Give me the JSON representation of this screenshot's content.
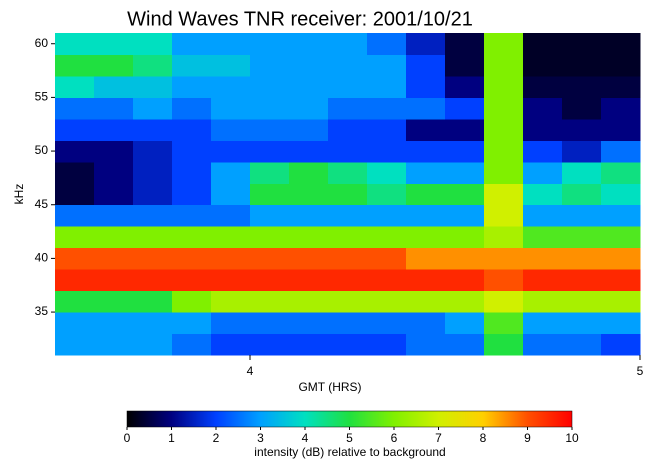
{
  "chart_data": {
    "type": "heatmap",
    "title": "Wind Waves TNR receiver: 2001/10/21",
    "x_label": "GMT (HRS)",
    "y_label": "kHz",
    "x": [
      3.55,
      3.65,
      3.75,
      3.85,
      3.95,
      4.05,
      4.15,
      4.25,
      4.35,
      4.45,
      4.55,
      4.65,
      4.75,
      4.85,
      4.95
    ],
    "y": [
      32,
      34,
      36,
      38,
      40,
      42,
      44,
      46,
      48,
      50,
      52,
      54,
      56,
      58,
      60
    ],
    "values": [
      [
        3,
        3,
        3,
        2.5,
        2,
        2,
        2,
        2,
        2,
        2.5,
        2.5,
        5,
        2.5,
        2.5,
        2
      ],
      [
        3,
        3,
        3,
        3,
        2.5,
        2.5,
        2.5,
        2.5,
        2.5,
        2.5,
        3,
        5.5,
        3,
        3,
        3
      ],
      [
        5,
        5,
        5,
        6,
        6.5,
        6.5,
        6.5,
        6.5,
        6.5,
        6.5,
        6.5,
        7,
        6.5,
        6.5,
        6.5
      ],
      [
        9.5,
        9.5,
        9.5,
        9.5,
        9.5,
        9.5,
        9.5,
        9.5,
        9.5,
        9.5,
        9.5,
        9,
        9.5,
        9.5,
        9.5
      ],
      [
        9,
        9,
        9,
        9,
        9,
        9,
        9,
        9,
        9,
        8.5,
        8.5,
        8.5,
        8.5,
        8.5,
        8.5
      ],
      [
        6,
        6,
        6,
        6,
        6,
        6,
        6,
        6,
        6,
        6,
        6,
        6.5,
        5.5,
        5.5,
        5.5
      ],
      [
        2.5,
        2.5,
        2.5,
        2.5,
        2.5,
        3,
        3,
        3,
        3,
        3,
        3,
        7,
        3,
        3,
        3
      ],
      [
        0.5,
        1,
        1.5,
        2,
        3,
        5,
        5,
        5,
        4.5,
        5,
        5,
        7,
        4,
        4.5,
        4
      ],
      [
        0.5,
        1,
        1.5,
        2,
        3,
        4.5,
        5,
        4.5,
        4,
        3,
        3,
        6,
        3,
        4,
        4.5
      ],
      [
        1,
        1,
        1.5,
        2,
        2,
        2,
        2,
        2,
        2,
        2,
        2,
        6,
        2,
        1.5,
        2.5
      ],
      [
        2,
        2,
        2,
        2,
        2.5,
        2.5,
        2.5,
        2,
        2,
        1,
        1,
        6,
        1,
        1,
        1
      ],
      [
        2.5,
        2.5,
        3,
        2.5,
        3,
        3,
        3,
        2.5,
        2.5,
        2.5,
        2,
        6,
        1,
        0.5,
        1
      ],
      [
        4,
        3.5,
        3.5,
        3,
        3,
        3,
        3,
        3,
        3,
        2,
        1,
        6,
        0.5,
        0.5,
        0.5
      ],
      [
        5,
        5,
        4.5,
        3.5,
        3.5,
        3,
        3,
        3,
        3,
        2,
        0.5,
        6,
        0.3,
        0.3,
        0.3
      ],
      [
        4,
        4,
        4,
        3,
        3,
        3,
        3,
        3,
        2.5,
        1.5,
        0.5,
        6,
        0.3,
        0.3,
        0.3
      ]
    ],
    "xlim": [
      3.5,
      5
    ],
    "xticks": [
      4,
      5
    ],
    "ylim": [
      31,
      61
    ],
    "yticks": [
      35,
      40,
      45,
      50,
      55,
      60
    ],
    "colorbar_label": "intensity (dB) relative to background",
    "zlim": [
      0,
      10
    ],
    "zticks": [
      0,
      1,
      2,
      3,
      4,
      5,
      6,
      7,
      8,
      9,
      10
    ],
    "colormap": [
      "#000000",
      "#000080",
      "#0040ff",
      "#00a0ff",
      "#00e0c0",
      "#20e040",
      "#80f000",
      "#d0f000",
      "#ffd000",
      "#ff5000",
      "#ff0000"
    ]
  }
}
